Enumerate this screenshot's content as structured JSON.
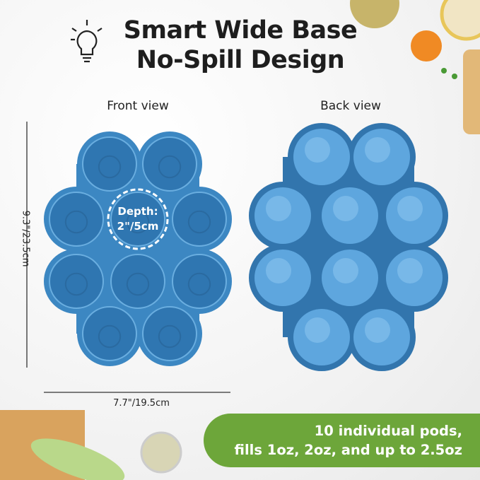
{
  "title": {
    "line1": "Smart Wide Base",
    "line2": "No-Spill Design"
  },
  "icons": {
    "title_icon": "lightbulb-icon"
  },
  "views": {
    "front": "Front view",
    "back": "Back view"
  },
  "dimensions": {
    "height": "9.3\"/23.5cm",
    "width": "7.7\"/19.5cm"
  },
  "depth": {
    "line1": "Depth:",
    "line2": "2\"/5cm"
  },
  "banner": {
    "line1": "10 individual pods,",
    "line2": "fills 1oz, 2oz, and up to 2.5oz"
  },
  "colors": {
    "tray": "#3c87c2",
    "pod_back": "#5ea6de",
    "banner": "#6da63a"
  }
}
